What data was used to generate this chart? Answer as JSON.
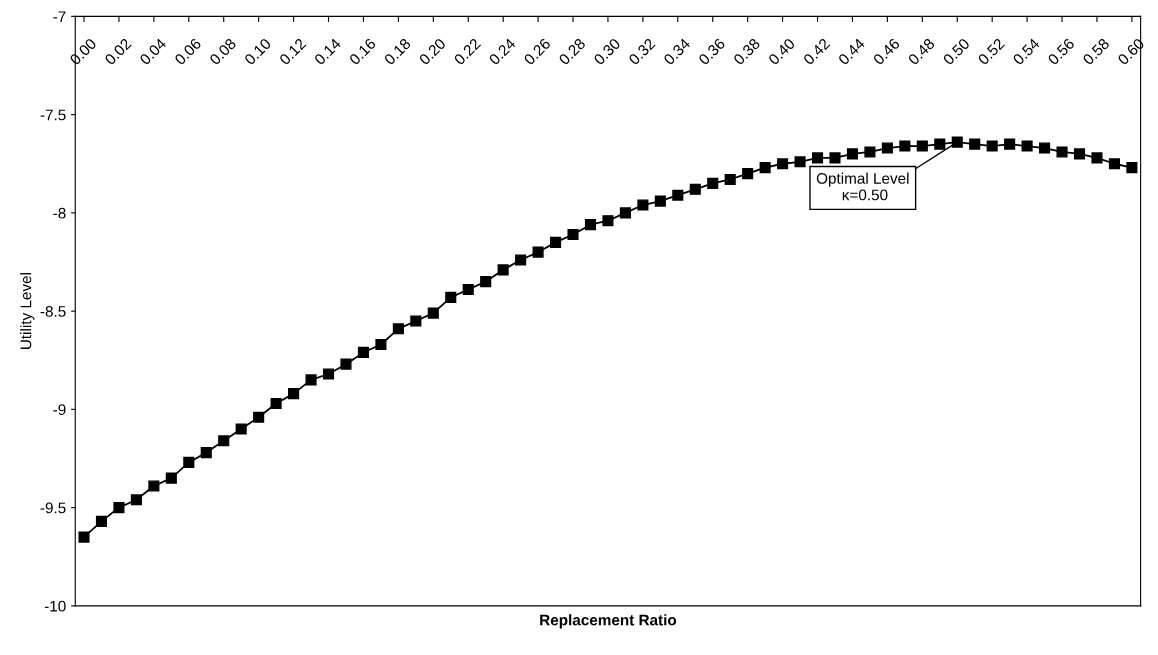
{
  "chart_data": {
    "type": "line",
    "xlabel": "Replacement Ratio",
    "ylabel": "Utility Level",
    "x": [
      0.0,
      0.01,
      0.02,
      0.03,
      0.04,
      0.05,
      0.06,
      0.07,
      0.08,
      0.09,
      0.1,
      0.11,
      0.12,
      0.13,
      0.14,
      0.15,
      0.16,
      0.17,
      0.18,
      0.19,
      0.2,
      0.21,
      0.22,
      0.23,
      0.24,
      0.25,
      0.26,
      0.27,
      0.28,
      0.29,
      0.3,
      0.31,
      0.32,
      0.33,
      0.34,
      0.35,
      0.36,
      0.37,
      0.38,
      0.39,
      0.4,
      0.41,
      0.42,
      0.43,
      0.44,
      0.45,
      0.46,
      0.47,
      0.48,
      0.49,
      0.5,
      0.51,
      0.52,
      0.53,
      0.54,
      0.55,
      0.56,
      0.57,
      0.58,
      0.59,
      0.6
    ],
    "series": [
      {
        "color": "#000000",
        "values": [
          -9.65,
          -9.57,
          -9.5,
          -9.46,
          -9.39,
          -9.35,
          -9.27,
          -9.22,
          -9.16,
          -9.1,
          -9.04,
          -8.97,
          -8.92,
          -8.85,
          -8.82,
          -8.77,
          -8.71,
          -8.67,
          -8.59,
          -8.55,
          -8.51,
          -8.43,
          -8.39,
          -8.35,
          -8.29,
          -8.24,
          -8.2,
          -8.15,
          -8.11,
          -8.06,
          -8.04,
          -8.0,
          -7.96,
          -7.94,
          -7.91,
          -7.88,
          -7.85,
          -7.83,
          -7.8,
          -7.77,
          -7.75,
          -7.74,
          -7.72,
          -7.72,
          -7.7,
          -7.69,
          -7.67,
          -7.66,
          -7.66,
          -7.65,
          -7.64,
          -7.65,
          -7.66,
          -7.65,
          -7.66,
          -7.67,
          -7.69,
          -7.7,
          -7.72,
          -7.75,
          -7.77
        ]
      }
    ],
    "xlim": [
      -0.005,
      0.605
    ],
    "xticks": [
      {
        "value": 0.0,
        "label": "0.00"
      },
      {
        "value": 0.02,
        "label": "0.02"
      },
      {
        "value": 0.04,
        "label": "0.04"
      },
      {
        "value": 0.06,
        "label": "0.06"
      },
      {
        "value": 0.08,
        "label": "0.08"
      },
      {
        "value": 0.1,
        "label": "0.10"
      },
      {
        "value": 0.12,
        "label": "0.12"
      },
      {
        "value": 0.14,
        "label": "0.14"
      },
      {
        "value": 0.16,
        "label": "0.16"
      },
      {
        "value": 0.18,
        "label": "0.18"
      },
      {
        "value": 0.2,
        "label": "0.20"
      },
      {
        "value": 0.22,
        "label": "0.22"
      },
      {
        "value": 0.24,
        "label": "0.24"
      },
      {
        "value": 0.26,
        "label": "0.26"
      },
      {
        "value": 0.28,
        "label": "0.28"
      },
      {
        "value": 0.3,
        "label": "0.30"
      },
      {
        "value": 0.32,
        "label": "0.32"
      },
      {
        "value": 0.34,
        "label": "0.34"
      },
      {
        "value": 0.36,
        "label": "0.36"
      },
      {
        "value": 0.38,
        "label": "0.38"
      },
      {
        "value": 0.4,
        "label": "0.40"
      },
      {
        "value": 0.42,
        "label": "0.42"
      },
      {
        "value": 0.44,
        "label": "0.44"
      },
      {
        "value": 0.46,
        "label": "0.46"
      },
      {
        "value": 0.48,
        "label": "0.48"
      },
      {
        "value": 0.5,
        "label": "0.50"
      },
      {
        "value": 0.52,
        "label": "0.52"
      },
      {
        "value": 0.54,
        "label": "0.54"
      },
      {
        "value": 0.56,
        "label": "0.56"
      },
      {
        "value": 0.58,
        "label": "0.58"
      },
      {
        "value": 0.6,
        "label": "0.60"
      }
    ],
    "ylim": [
      -10,
      -7
    ],
    "yticks": [
      -7,
      -7.5,
      -8,
      -8.5,
      -9,
      -9.5,
      -10
    ],
    "marker": "square",
    "line_style": "solid",
    "grid": false,
    "legend": false,
    "annotations": [
      {
        "text": "Optimal Level\n κ=0.50",
        "x": 0.5,
        "y": -7.64
      }
    ]
  }
}
